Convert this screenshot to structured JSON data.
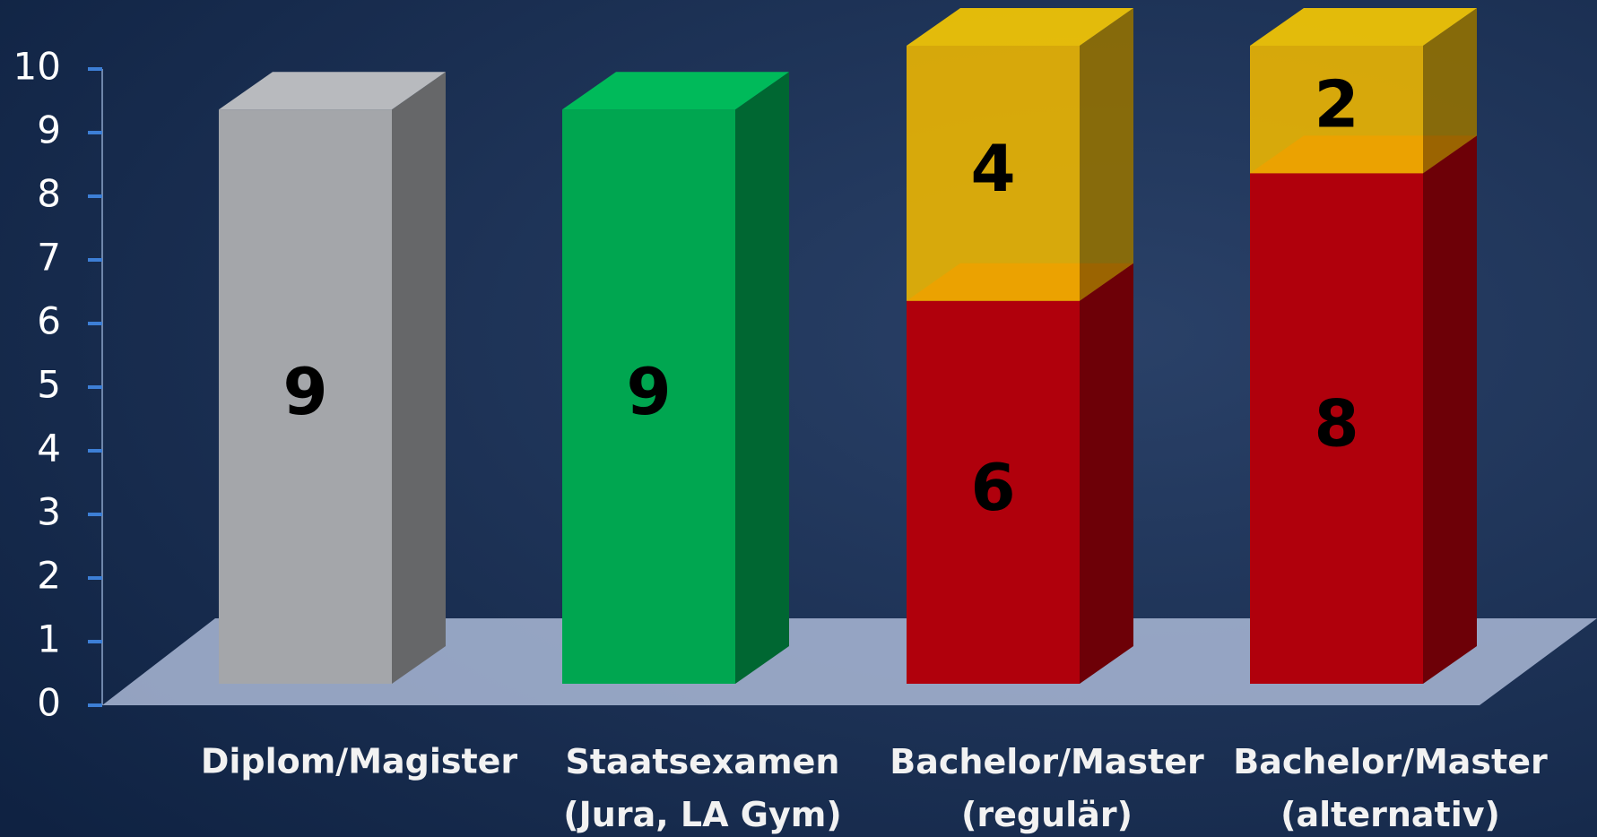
{
  "chart_data": {
    "type": "bar3d_stacked",
    "categories": [
      "Diplom/Magister",
      "Staatsexamen\n(Jura, LA Gym)",
      "Bachelor/Master\n(regulär)",
      "Bachelor/Master\n(alternativ)"
    ],
    "series": [
      {
        "colors": [
          "#a4a6aa",
          "#00a650",
          "#b0000c",
          "#b0000c"
        ],
        "values": [
          9,
          9,
          6,
          8
        ]
      },
      {
        "color": "#f0b800",
        "values": [
          null,
          null,
          4,
          2
        ]
      }
    ],
    "ylim": [
      0,
      10
    ],
    "yticks": [
      0,
      1,
      2,
      3,
      4,
      5,
      6,
      7,
      8,
      9,
      10
    ]
  }
}
